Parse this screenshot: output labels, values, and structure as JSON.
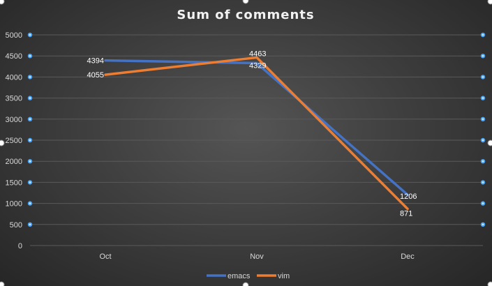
{
  "chart_data": {
    "type": "line",
    "title": "Sum of comments",
    "categories": [
      "Oct",
      "Nov",
      "Dec"
    ],
    "series": [
      {
        "name": "emacs",
        "values": [
          4394,
          4329,
          1206
        ],
        "color": "#4472c4"
      },
      {
        "name": "vim",
        "values": [
          4055,
          4463,
          871
        ],
        "color": "#ed7d31"
      }
    ],
    "yticks": [
      0,
      500,
      1000,
      1500,
      2000,
      2500,
      3000,
      3500,
      4000,
      4500,
      5000
    ],
    "ylim": [
      0,
      5000
    ],
    "grid": true,
    "legend": "bottom"
  }
}
